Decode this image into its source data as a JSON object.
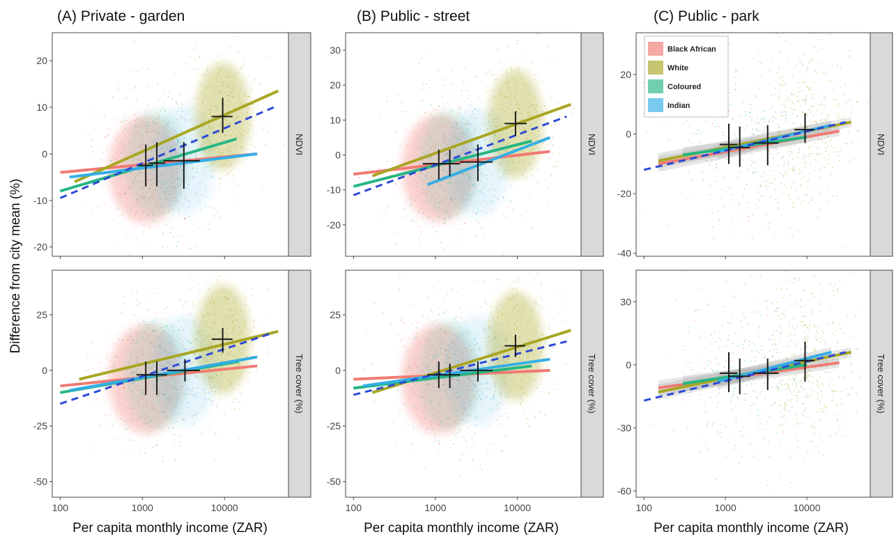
{
  "colors": {
    "black_african": "#f07a73",
    "white": "#a8a623",
    "coloured": "#25b681",
    "indian": "#33aee6",
    "overall": "#2b49d6",
    "strip_bg": "#d9d9d9",
    "panel_border": "#444444"
  },
  "legend": {
    "items": [
      {
        "label": "Black African",
        "color_key": "black_african"
      },
      {
        "label": "White",
        "color_key": "white"
      },
      {
        "label": "Coloured",
        "color_key": "coloured"
      },
      {
        "label": "Indian",
        "color_key": "indian"
      }
    ],
    "placement": "top-left of panel C NDVI"
  },
  "y_axis_label": "Difference from city mean (%)",
  "x_axis_label": "Per capita monthly income (ZAR)",
  "chart_data": {
    "type": "scatter",
    "x_scale": "log10",
    "x_range": [
      80,
      60000
    ],
    "x_ticks": [
      100,
      1000,
      10000
    ],
    "x_tick_labels": [
      "100",
      "1000",
      "10000"
    ],
    "grid": false,
    "columns": [
      {
        "title": "(A) Private - garden",
        "title_prefix": "(A)",
        "title_rest": " Private - garden"
      },
      {
        "title": "(B) Public - street",
        "title_prefix": "(B)",
        "title_rest": " Public - street"
      },
      {
        "title": "(C) Public - park",
        "title_prefix": "(C)",
        "title_rest": " Public - park"
      }
    ],
    "rows": [
      {
        "strip": "NDVI"
      },
      {
        "strip": "Tree cover (%)"
      }
    ],
    "panels": [
      {
        "column": 0,
        "row": 0,
        "ylim": [
          -22,
          26
        ],
        "y_ticks": [
          20,
          10,
          0,
          -10,
          -20
        ],
        "y_tick_labels": [
          "20",
          "10",
          "0",
          "-10",
          "-20"
        ],
        "lines": [
          {
            "series": "black_african",
            "x": [
              100,
              25000
            ],
            "y": [
              -4,
              0
            ]
          },
          {
            "series": "white",
            "x": [
              150,
              45000
            ],
            "y": [
              -6,
              13.5
            ]
          },
          {
            "series": "coloured",
            "x": [
              100,
              14000
            ],
            "y": [
              -8,
              3.2
            ]
          },
          {
            "series": "indian",
            "x": [
              130,
              25000
            ],
            "y": [
              -5,
              0
            ]
          },
          {
            "series": "overall",
            "dashed": true,
            "x": [
              100,
              40000
            ],
            "y": [
              -9.5,
              10
            ]
          }
        ],
        "means": [
          {
            "series": "black_african",
            "x": 1100,
            "y": -2.5,
            "x_lo": 900,
            "x_hi": 1350,
            "y_lo": -7,
            "y_hi": 2
          },
          {
            "series": "coloured",
            "x": 1500,
            "y": -2,
            "x_lo": 1200,
            "x_hi": 1900,
            "y_lo": -7,
            "y_hi": 2.5
          },
          {
            "series": "indian",
            "x": 3200,
            "y": -1.5,
            "x_lo": 1800,
            "x_hi": 5000,
            "y_lo": -7.5,
            "y_hi": 2.5
          },
          {
            "series": "white",
            "x": 9500,
            "y": 8,
            "x_lo": 7000,
            "x_hi": 12500,
            "y_lo": 4.5,
            "y_hi": 12
          }
        ]
      },
      {
        "column": 1,
        "row": 0,
        "ylim": [
          -29,
          35
        ],
        "y_ticks": [
          30,
          20,
          10,
          0,
          -10,
          -20
        ],
        "y_tick_labels": [
          "30",
          "20",
          "10",
          "0",
          "-10",
          "-20"
        ],
        "lines": [
          {
            "series": "black_african",
            "x": [
              100,
              25000
            ],
            "y": [
              -5.5,
              1
            ]
          },
          {
            "series": "white",
            "x": [
              170,
              45000
            ],
            "y": [
              -6,
              14.5
            ]
          },
          {
            "series": "coloured",
            "x": [
              100,
              15000
            ],
            "y": [
              -9,
              4
            ]
          },
          {
            "series": "indian",
            "x": [
              800,
              25000
            ],
            "y": [
              -8.5,
              5
            ]
          },
          {
            "series": "overall",
            "dashed": true,
            "x": [
              100,
              40000
            ],
            "y": [
              -11.5,
              11
            ]
          }
        ],
        "means": [
          {
            "series": "black_african",
            "x": 1100,
            "y": -2.5,
            "x_lo": 700,
            "x_hi": 1500,
            "y_lo": -7,
            "y_hi": 1.5
          },
          {
            "series": "coloured",
            "x": 1500,
            "y": -2.5,
            "x_lo": 1100,
            "x_hi": 2000,
            "y_lo": -6,
            "y_hi": 1.5
          },
          {
            "series": "indian",
            "x": 3300,
            "y": -2,
            "x_lo": 2000,
            "x_hi": 5000,
            "y_lo": -7.5,
            "y_hi": 3
          },
          {
            "series": "white",
            "x": 9500,
            "y": 9,
            "x_lo": 7000,
            "x_hi": 13000,
            "y_lo": 5.5,
            "y_hi": 12.5
          }
        ]
      },
      {
        "column": 2,
        "row": 0,
        "ylim": [
          -41,
          34
        ],
        "y_ticks": [
          20,
          0,
          -20,
          -40
        ],
        "y_tick_labels": [
          "20",
          "0",
          "-20",
          "-40"
        ],
        "lines": [
          {
            "series": "black_african",
            "x": [
              150,
              25000
            ],
            "y": [
              -10,
              1
            ]
          },
          {
            "series": "white",
            "x": [
              150,
              35000
            ],
            "y": [
              -9,
              4
            ]
          },
          {
            "series": "coloured",
            "x": [
              300,
              10000
            ],
            "y": [
              -7,
              -1
            ]
          },
          {
            "series": "indian",
            "x": [
              800,
              20000
            ],
            "y": [
              -6,
              3
            ]
          },
          {
            "series": "overall",
            "dashed": true,
            "x": [
              100,
              30000
            ],
            "y": [
              -12,
              4
            ]
          }
        ],
        "means": [
          {
            "series": "black_african",
            "x": 1100,
            "y": -3.5,
            "x_lo": 850,
            "x_hi": 1400,
            "y_lo": -10,
            "y_hi": 3.5
          },
          {
            "series": "coloured",
            "x": 1500,
            "y": -4.5,
            "x_lo": 1100,
            "x_hi": 2000,
            "y_lo": -11,
            "y_hi": 2.5
          },
          {
            "series": "indian",
            "x": 3300,
            "y": -3,
            "x_lo": 2200,
            "x_hi": 4500,
            "y_lo": -10.5,
            "y_hi": 3
          },
          {
            "series": "white",
            "x": 9500,
            "y": 1.5,
            "x_lo": 7000,
            "x_hi": 12500,
            "y_lo": -3,
            "y_hi": 7
          }
        ]
      },
      {
        "column": 0,
        "row": 1,
        "ylim": [
          -57,
          45
        ],
        "y_ticks": [
          25,
          0,
          -25,
          -50
        ],
        "y_tick_labels": [
          "25",
          "0",
          "-25",
          "-50"
        ],
        "lines": [
          {
            "series": "black_african",
            "x": [
              100,
              25000
            ],
            "y": [
              -7,
              2
            ]
          },
          {
            "series": "white",
            "x": [
              170,
              45000
            ],
            "y": [
              -4,
              17.5
            ]
          },
          {
            "series": "coloured",
            "x": [
              100,
              15000
            ],
            "y": [
              -10,
              4
            ]
          },
          {
            "series": "indian",
            "x": [
              130,
              25000
            ],
            "y": [
              -9,
              6
            ]
          },
          {
            "series": "overall",
            "dashed": true,
            "x": [
              100,
              40000
            ],
            "y": [
              -15,
              17
            ]
          }
        ],
        "means": [
          {
            "series": "black_african",
            "x": 1100,
            "y": -2,
            "x_lo": 850,
            "x_hi": 1400,
            "y_lo": -11,
            "y_hi": 4
          },
          {
            "series": "coloured",
            "x": 1500,
            "y": -2,
            "x_lo": 1100,
            "x_hi": 2000,
            "y_lo": -11,
            "y_hi": 4
          },
          {
            "series": "indian",
            "x": 3300,
            "y": 0,
            "x_lo": 2000,
            "x_hi": 5000,
            "y_lo": -5,
            "y_hi": 5
          },
          {
            "series": "white",
            "x": 9500,
            "y": 14,
            "x_lo": 7000,
            "x_hi": 12500,
            "y_lo": 8,
            "y_hi": 19
          }
        ]
      },
      {
        "column": 1,
        "row": 1,
        "ylim": [
          -57,
          45
        ],
        "y_ticks": [
          25,
          0,
          -25,
          -50
        ],
        "y_tick_labels": [
          "25",
          "0",
          "-25",
          "-50"
        ],
        "lines": [
          {
            "series": "black_african",
            "x": [
              100,
              25000
            ],
            "y": [
              -4,
              0
            ]
          },
          {
            "series": "white",
            "x": [
              170,
              45000
            ],
            "y": [
              -10,
              18
            ]
          },
          {
            "series": "coloured",
            "x": [
              100,
              15000
            ],
            "y": [
              -8,
              2
            ]
          },
          {
            "series": "indian",
            "x": [
              130,
              25000
            ],
            "y": [
              -7,
              5
            ]
          },
          {
            "series": "overall",
            "dashed": true,
            "x": [
              100,
              40000
            ],
            "y": [
              -11,
              13
            ]
          }
        ],
        "means": [
          {
            "series": "black_african",
            "x": 1100,
            "y": -2,
            "x_lo": 800,
            "x_hi": 1400,
            "y_lo": -8,
            "y_hi": 4
          },
          {
            "series": "coloured",
            "x": 1500,
            "y": -2,
            "x_lo": 1100,
            "x_hi": 2000,
            "y_lo": -8,
            "y_hi": 3
          },
          {
            "series": "indian",
            "x": 3300,
            "y": 0,
            "x_lo": 2000,
            "x_hi": 5000,
            "y_lo": -5,
            "y_hi": 4
          },
          {
            "series": "white",
            "x": 9500,
            "y": 11,
            "x_lo": 7000,
            "x_hi": 12500,
            "y_lo": 6,
            "y_hi": 16
          }
        ]
      },
      {
        "column": 2,
        "row": 1,
        "ylim": [
          -63,
          45
        ],
        "y_ticks": [
          30,
          0,
          -30,
          -60
        ],
        "y_tick_labels": [
          "30",
          "0",
          "-30",
          "-60"
        ],
        "lines": [
          {
            "series": "black_african",
            "x": [
              150,
              25000
            ],
            "y": [
              -11,
              1
            ]
          },
          {
            "series": "white",
            "x": [
              150,
              35000
            ],
            "y": [
              -13,
              6
            ]
          },
          {
            "series": "coloured",
            "x": [
              300,
              10000
            ],
            "y": [
              -9,
              0
            ]
          },
          {
            "series": "indian",
            "x": [
              800,
              20000
            ],
            "y": [
              -8,
              6
            ]
          },
          {
            "series": "overall",
            "dashed": true,
            "x": [
              100,
              30000
            ],
            "y": [
              -17,
              6
            ]
          }
        ],
        "means": [
          {
            "series": "black_african",
            "x": 1100,
            "y": -4,
            "x_lo": 850,
            "x_hi": 1400,
            "y_lo": -13,
            "y_hi": 6
          },
          {
            "series": "coloured",
            "x": 1500,
            "y": -5.5,
            "x_lo": 1100,
            "x_hi": 2000,
            "y_lo": -14,
            "y_hi": 3
          },
          {
            "series": "indian",
            "x": 3300,
            "y": -4,
            "x_lo": 2200,
            "x_hi": 4500,
            "y_lo": -12,
            "y_hi": 3
          },
          {
            "series": "white",
            "x": 9500,
            "y": 2,
            "x_lo": 7000,
            "x_hi": 12500,
            "y_lo": -8,
            "y_hi": 11
          }
        ]
      }
    ]
  }
}
